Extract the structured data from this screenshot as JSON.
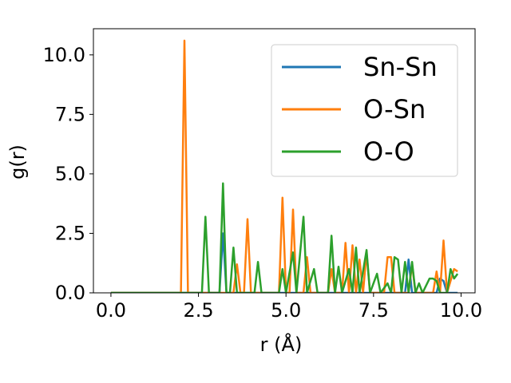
{
  "chart_data": {
    "type": "line",
    "title": "",
    "xlabel": "r (Å)",
    "ylabel": "g(r)",
    "xlim": [
      -0.5,
      10.4
    ],
    "ylim": [
      0,
      11.1
    ],
    "xticks": [
      0.0,
      2.5,
      5.0,
      7.5,
      10.0
    ],
    "xtick_labels": [
      "0.0",
      "2.5",
      "5.0",
      "7.5",
      "10.0"
    ],
    "yticks": [
      0.0,
      2.5,
      5.0,
      7.5,
      10.0
    ],
    "ytick_labels": [
      "0.0",
      "2.5",
      "5.0",
      "7.5",
      "10.0"
    ],
    "grid": false,
    "legend_position": "top-right",
    "series": [
      {
        "name": "Sn-Sn",
        "color": "#1f77b4",
        "points": [
          [
            0.0,
            0
          ],
          [
            3.0,
            0
          ],
          [
            3.1,
            0
          ],
          [
            3.2,
            2.5
          ],
          [
            3.3,
            0
          ],
          [
            8.3,
            0
          ],
          [
            8.4,
            0
          ],
          [
            8.5,
            1.4
          ],
          [
            8.6,
            0
          ],
          [
            9.2,
            0
          ],
          [
            9.3,
            0
          ],
          [
            9.4,
            0.6
          ],
          [
            9.5,
            0.5
          ],
          [
            9.6,
            0
          ],
          [
            9.9,
            0
          ]
        ]
      },
      {
        "name": "O-Sn",
        "color": "#ff7f0e",
        "points": [
          [
            0.0,
            0
          ],
          [
            2.0,
            0
          ],
          [
            2.1,
            10.6
          ],
          [
            2.2,
            0
          ],
          [
            3.5,
            0
          ],
          [
            3.6,
            1.2
          ],
          [
            3.7,
            0
          ],
          [
            3.8,
            0
          ],
          [
            3.9,
            3.1
          ],
          [
            4.0,
            0
          ],
          [
            4.8,
            0
          ],
          [
            4.9,
            4.0
          ],
          [
            5.0,
            0
          ],
          [
            5.1,
            0
          ],
          [
            5.2,
            3.5
          ],
          [
            5.3,
            0
          ],
          [
            5.5,
            0
          ],
          [
            5.6,
            1.5
          ],
          [
            5.7,
            0
          ],
          [
            6.2,
            0
          ],
          [
            6.3,
            1.0
          ],
          [
            6.4,
            0
          ],
          [
            6.6,
            0
          ],
          [
            6.7,
            2.1
          ],
          [
            6.8,
            0
          ],
          [
            6.9,
            2.0
          ],
          [
            7.0,
            0
          ],
          [
            7.1,
            1.4
          ],
          [
            7.2,
            0
          ],
          [
            7.3,
            1.7
          ],
          [
            7.4,
            0
          ],
          [
            7.8,
            0
          ],
          [
            7.9,
            1.5
          ],
          [
            8.0,
            1.5
          ],
          [
            8.1,
            0
          ],
          [
            8.5,
            0
          ],
          [
            8.6,
            1.2
          ],
          [
            8.7,
            0
          ],
          [
            9.2,
            0
          ],
          [
            9.3,
            0.9
          ],
          [
            9.4,
            0
          ],
          [
            9.5,
            2.2
          ],
          [
            9.6,
            0
          ],
          [
            9.8,
            1.0
          ],
          [
            9.9,
            0.9
          ]
        ]
      },
      {
        "name": "O-O",
        "color": "#2ca02c",
        "points": [
          [
            0.0,
            0
          ],
          [
            2.6,
            0
          ],
          [
            2.7,
            3.2
          ],
          [
            2.8,
            0
          ],
          [
            3.1,
            0
          ],
          [
            3.2,
            4.6
          ],
          [
            3.3,
            0
          ],
          [
            3.4,
            0
          ],
          [
            3.5,
            1.9
          ],
          [
            3.6,
            0
          ],
          [
            4.1,
            0
          ],
          [
            4.2,
            1.3
          ],
          [
            4.3,
            0
          ],
          [
            4.8,
            0
          ],
          [
            4.9,
            1.0
          ],
          [
            5.0,
            0
          ],
          [
            5.2,
            1.7
          ],
          [
            5.3,
            0
          ],
          [
            5.5,
            3.2
          ],
          [
            5.6,
            0
          ],
          [
            5.8,
            1.0
          ],
          [
            5.9,
            0
          ],
          [
            6.2,
            0
          ],
          [
            6.3,
            2.4
          ],
          [
            6.4,
            0
          ],
          [
            6.5,
            1.1
          ],
          [
            6.6,
            0
          ],
          [
            6.8,
            1.0
          ],
          [
            6.9,
            0
          ],
          [
            7.0,
            1.9
          ],
          [
            7.1,
            0
          ],
          [
            7.3,
            1.8
          ],
          [
            7.4,
            0
          ],
          [
            7.6,
            0.8
          ],
          [
            7.7,
            0
          ],
          [
            7.9,
            0.4
          ],
          [
            8.0,
            0
          ],
          [
            8.1,
            1.5
          ],
          [
            8.2,
            1.4
          ],
          [
            8.3,
            0
          ],
          [
            8.4,
            1.3
          ],
          [
            8.5,
            0
          ],
          [
            8.6,
            1.3
          ],
          [
            8.7,
            0
          ],
          [
            8.8,
            0.4
          ],
          [
            8.9,
            0
          ],
          [
            9.1,
            0.6
          ],
          [
            9.2,
            0.6
          ],
          [
            9.3,
            0.5
          ],
          [
            9.4,
            0
          ],
          [
            9.6,
            0
          ],
          [
            9.7,
            1.0
          ],
          [
            9.8,
            0.6
          ],
          [
            9.9,
            0.8
          ]
        ]
      }
    ]
  }
}
